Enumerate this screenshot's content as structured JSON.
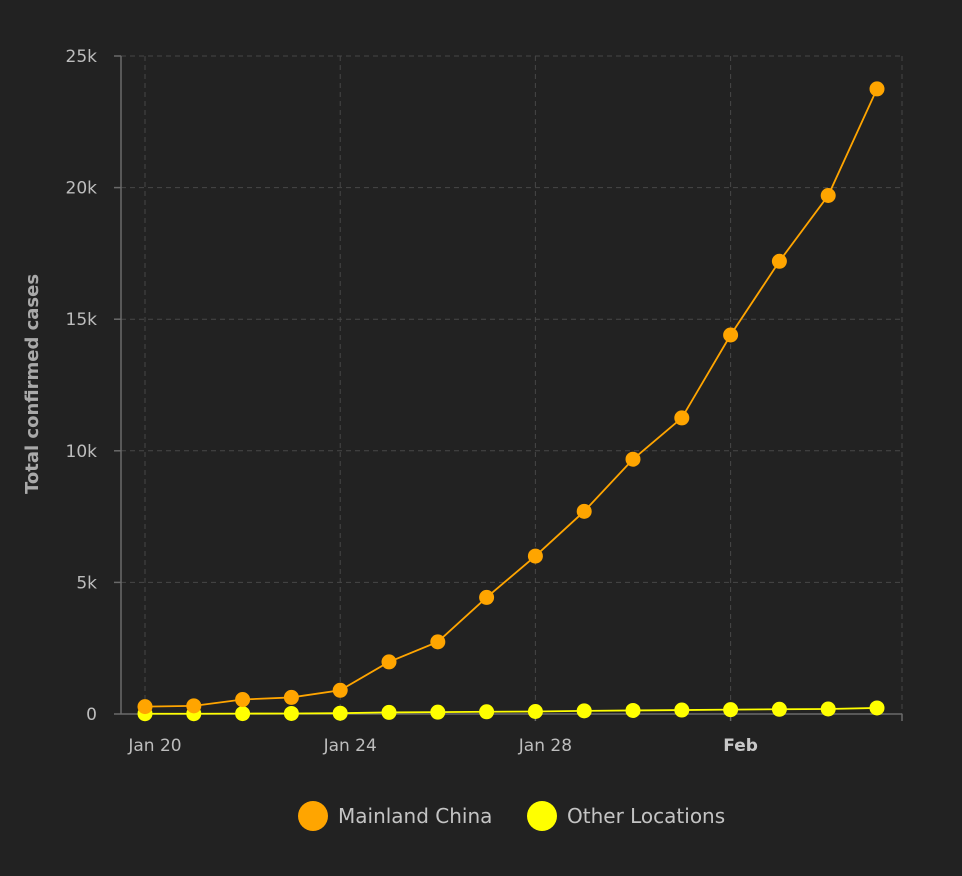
{
  "chart_data": {
    "type": "line",
    "ylabel": "Total confirmed cases",
    "xlabel": "",
    "ylim": [
      0,
      25000
    ],
    "y_ticks": [
      {
        "value": 0,
        "label": "0"
      },
      {
        "value": 5000,
        "label": "5k"
      },
      {
        "value": 10000,
        "label": "10k"
      },
      {
        "value": 15000,
        "label": "15k"
      },
      {
        "value": 20000,
        "label": "20k"
      },
      {
        "value": 25000,
        "label": "25k"
      }
    ],
    "x_ticks": [
      {
        "date": "2020-01-20",
        "label": "Jan 20",
        "bold": false
      },
      {
        "date": "2020-01-24",
        "label": "Jan 24",
        "bold": false
      },
      {
        "date": "2020-01-28",
        "label": "Jan 28",
        "bold": false
      },
      {
        "date": "2020-02-01",
        "label": "Feb",
        "bold": true
      }
    ],
    "x": [
      "2020-01-20",
      "2020-01-21",
      "2020-01-22",
      "2020-01-23",
      "2020-01-24",
      "2020-01-25",
      "2020-01-26",
      "2020-01-27",
      "2020-01-28",
      "2020-01-29",
      "2020-01-30",
      "2020-01-31",
      "2020-02-01",
      "2020-02-02",
      "2020-02-03",
      "2020-02-04",
      "2020-02-05"
    ],
    "grid": true,
    "legend_position": "bottom",
    "series": [
      {
        "name": "Mainland China",
        "color": "#FFA500",
        "values": [
          280,
          310,
          550,
          630,
          900,
          1980,
          2740,
          4430,
          6000,
          7700,
          9680,
          11250,
          14400,
          17200,
          19700,
          23750,
          null
        ]
      },
      {
        "name": "Other Locations",
        "color": "#FFFF00",
        "values": [
          10,
          10,
          15,
          20,
          30,
          60,
          70,
          85,
          95,
          120,
          135,
          150,
          165,
          180,
          190,
          230,
          null
        ]
      }
    ]
  }
}
